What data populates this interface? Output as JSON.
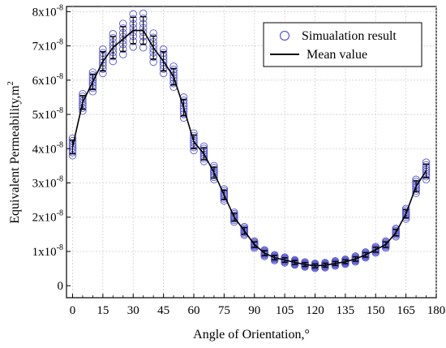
{
  "chart_data": {
    "type": "scatter",
    "title": "",
    "xlabel": "Angle of Orientation,°",
    "ylabel": "Equivalent Permeability,m",
    "ylabel_superscript": "2",
    "xlim": [
      -3,
      180
    ],
    "ylim": [
      -0.35,
      8.15
    ],
    "y_unit_exponent": "-8",
    "xticks": [
      0,
      15,
      30,
      45,
      60,
      75,
      90,
      105,
      120,
      135,
      150,
      165,
      180
    ],
    "yticks": [
      0,
      1,
      2,
      3,
      4,
      5,
      6,
      7,
      8
    ],
    "grid": true,
    "legend_position": "top-right",
    "colors": {
      "scatter": "#5a5acd",
      "mean": "#000000",
      "grid": "#cfcfcf"
    },
    "x": [
      0,
      5,
      10,
      15,
      20,
      25,
      30,
      35,
      40,
      45,
      50,
      55,
      60,
      65,
      70,
      75,
      80,
      85,
      90,
      95,
      100,
      105,
      110,
      115,
      120,
      125,
      130,
      135,
      140,
      145,
      150,
      155,
      160,
      165,
      170,
      175
    ],
    "series": [
      {
        "name": "Simualation result",
        "kind": "scatter",
        "spread": [
          0.25,
          0.25,
          0.28,
          0.35,
          0.4,
          0.45,
          0.48,
          0.5,
          0.42,
          0.35,
          0.3,
          0.3,
          0.25,
          0.22,
          0.2,
          0.17,
          0.14,
          0.12,
          0.1,
          0.09,
          0.08,
          0.08,
          0.07,
          0.07,
          0.07,
          0.07,
          0.07,
          0.07,
          0.08,
          0.08,
          0.09,
          0.1,
          0.12,
          0.15,
          0.2,
          0.25
        ]
      },
      {
        "name": "Mean value",
        "kind": "line",
        "values": [
          4.05,
          5.35,
          5.95,
          6.55,
          6.95,
          7.2,
          7.45,
          7.45,
          6.95,
          6.55,
          6.1,
          5.2,
          4.2,
          3.85,
          3.3,
          2.65,
          2.0,
          1.6,
          1.2,
          0.95,
          0.82,
          0.75,
          0.68,
          0.62,
          0.58,
          0.6,
          0.65,
          0.7,
          0.78,
          0.9,
          1.05,
          1.2,
          1.55,
          2.1,
          2.9,
          3.35
        ]
      }
    ]
  }
}
